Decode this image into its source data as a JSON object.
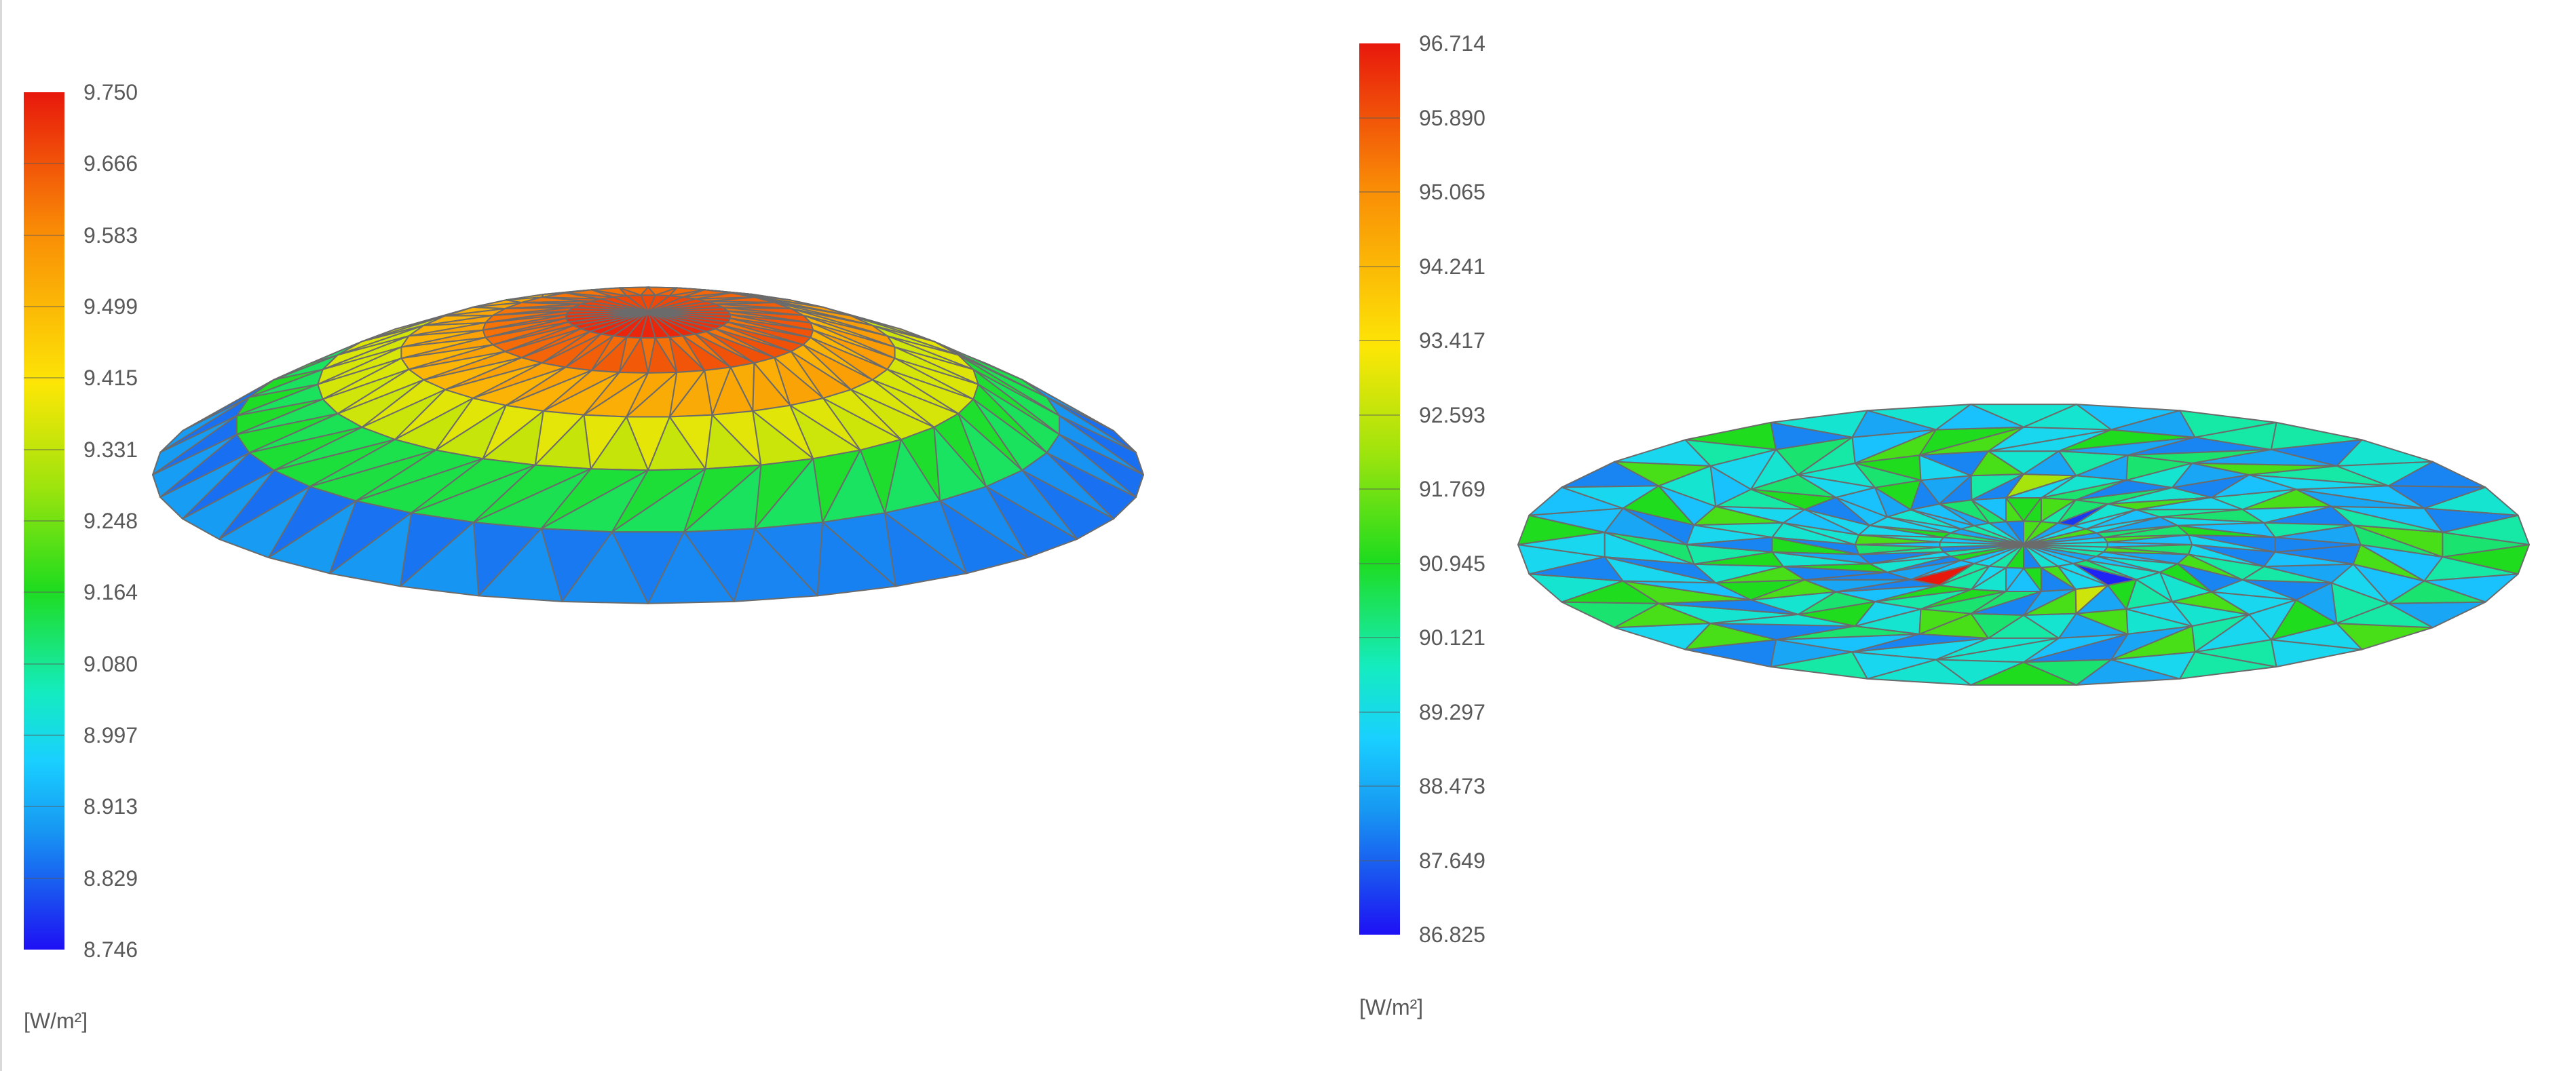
{
  "left_plot": {
    "unit": "[W/m²]",
    "ticks": [
      "9.750",
      "9.666",
      "9.583",
      "9.499",
      "9.415",
      "9.331",
      "9.248",
      "9.164",
      "9.080",
      "8.997",
      "8.913",
      "8.829",
      "8.746"
    ],
    "range": [
      8.746,
      9.75
    ],
    "shape": "dome"
  },
  "right_plot": {
    "unit": "[W/m²]",
    "ticks": [
      "96.714",
      "95.890",
      "95.065",
      "94.241",
      "93.417",
      "92.593",
      "91.769",
      "90.945",
      "90.121",
      "89.297",
      "88.473",
      "87.649",
      "86.825"
    ],
    "range": [
      86.825,
      96.714
    ],
    "shape": "flat-disc"
  }
}
